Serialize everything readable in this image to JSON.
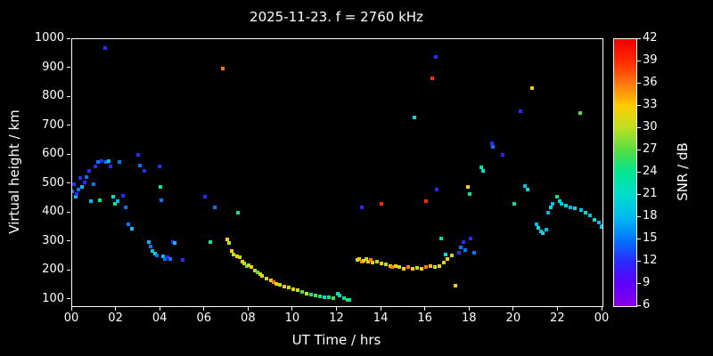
{
  "title": "2025-11-23. f = 2760 kHz",
  "colors": {
    "background": "#000000",
    "foreground": "#ffffff"
  },
  "axes": {
    "x_label": "UT Time / hrs",
    "y_label": "Virtual height / km",
    "x_tick_labels": [
      "00",
      "02",
      "04",
      "06",
      "08",
      "10",
      "12",
      "14",
      "16",
      "18",
      "20",
      "22",
      "00"
    ],
    "x_tick_values": [
      0,
      2,
      4,
      6,
      8,
      10,
      12,
      14,
      16,
      18,
      20,
      22,
      24
    ],
    "y_tick_values": [
      100,
      200,
      300,
      400,
      500,
      600,
      700,
      800,
      900,
      1000
    ]
  },
  "colorbar": {
    "label": "SNR / dB",
    "ticks": [
      6,
      9,
      12,
      15,
      18,
      21,
      24,
      27,
      30,
      33,
      36,
      39,
      42
    ],
    "range": [
      6,
      42
    ],
    "stops": [
      {
        "value": 6,
        "color": "#8800e8"
      },
      {
        "value": 9,
        "color": "#5f00ff"
      },
      {
        "value": 12,
        "color": "#2a2aff"
      },
      {
        "value": 15,
        "color": "#0077ff"
      },
      {
        "value": 18,
        "color": "#00bbee"
      },
      {
        "value": 21,
        "color": "#00ddcc"
      },
      {
        "value": 24,
        "color": "#00e691"
      },
      {
        "value": 27,
        "color": "#55dd44"
      },
      {
        "value": 30,
        "color": "#bbe022"
      },
      {
        "value": 33,
        "color": "#ffcc00"
      },
      {
        "value": 36,
        "color": "#ff7711"
      },
      {
        "value": 39,
        "color": "#ff2a00"
      },
      {
        "value": 42,
        "color": "#ee0000"
      }
    ]
  },
  "chart_data": {
    "type": "scatter",
    "title": "2025-11-23. f = 2760 kHz",
    "xlabel": "UT Time / hrs",
    "ylabel": "Virtual height / km",
    "colorbar_label": "SNR / dB",
    "xlim": [
      0,
      24
    ],
    "ylim": [
      78,
      1000
    ],
    "color_range": [
      6,
      42
    ],
    "marker": "square",
    "point_format": [
      "ut_hours",
      "virtual_height_km",
      "snr_db"
    ],
    "points": [
      [
        0.0,
        475,
        15
      ],
      [
        0.1,
        500,
        12
      ],
      [
        0.15,
        455,
        18
      ],
      [
        0.2,
        465,
        12
      ],
      [
        0.3,
        480,
        15
      ],
      [
        0.35,
        520,
        12
      ],
      [
        0.45,
        490,
        18
      ],
      [
        0.55,
        505,
        12
      ],
      [
        0.65,
        525,
        15
      ],
      [
        0.75,
        545,
        12
      ],
      [
        0.85,
        440,
        18
      ],
      [
        0.95,
        500,
        15
      ],
      [
        1.05,
        560,
        12
      ],
      [
        1.15,
        575,
        15
      ],
      [
        1.25,
        445,
        24
      ],
      [
        1.35,
        580,
        12
      ],
      [
        1.5,
        970,
        12
      ],
      [
        1.55,
        575,
        15
      ],
      [
        1.65,
        580,
        18
      ],
      [
        1.75,
        560,
        12
      ],
      [
        1.85,
        455,
        21
      ],
      [
        1.95,
        430,
        24
      ],
      [
        2.05,
        440,
        18
      ],
      [
        2.15,
        575,
        15
      ],
      [
        2.3,
        460,
        12
      ],
      [
        2.4,
        420,
        15
      ],
      [
        2.55,
        360,
        15
      ],
      [
        2.7,
        345,
        18
      ],
      [
        3.0,
        600,
        12
      ],
      [
        3.05,
        565,
        15
      ],
      [
        3.25,
        545,
        12
      ],
      [
        3.45,
        300,
        18
      ],
      [
        3.55,
        285,
        15
      ],
      [
        3.65,
        270,
        18
      ],
      [
        3.75,
        258,
        21
      ],
      [
        3.85,
        252,
        15
      ],
      [
        3.95,
        560,
        12
      ],
      [
        4.0,
        490,
        24
      ],
      [
        4.05,
        445,
        15
      ],
      [
        4.1,
        250,
        18
      ],
      [
        4.2,
        242,
        15
      ],
      [
        4.3,
        246,
        12
      ],
      [
        4.45,
        240,
        15
      ],
      [
        4.55,
        300,
        12
      ],
      [
        4.65,
        295,
        18
      ],
      [
        5.0,
        238,
        12
      ],
      [
        6.0,
        455,
        12
      ],
      [
        6.25,
        300,
        24
      ],
      [
        6.45,
        420,
        15
      ],
      [
        6.8,
        900,
        36
      ],
      [
        7.0,
        310,
        33
      ],
      [
        7.1,
        295,
        30
      ],
      [
        7.2,
        268,
        33
      ],
      [
        7.3,
        256,
        30
      ],
      [
        7.45,
        250,
        33
      ],
      [
        7.5,
        400,
        24
      ],
      [
        7.6,
        246,
        30
      ],
      [
        7.7,
        232,
        33
      ],
      [
        7.8,
        226,
        30
      ],
      [
        7.9,
        216,
        27
      ],
      [
        8.0,
        220,
        30
      ],
      [
        8.1,
        212,
        33
      ],
      [
        8.25,
        202,
        30
      ],
      [
        8.4,
        196,
        27
      ],
      [
        8.5,
        188,
        30
      ],
      [
        8.6,
        182,
        33
      ],
      [
        8.8,
        172,
        30
      ],
      [
        9.0,
        166,
        33
      ],
      [
        9.1,
        160,
        36
      ],
      [
        9.25,
        156,
        33
      ],
      [
        9.4,
        152,
        30
      ],
      [
        9.6,
        146,
        33
      ],
      [
        9.8,
        142,
        30
      ],
      [
        10.0,
        136,
        33
      ],
      [
        10.2,
        132,
        30
      ],
      [
        10.4,
        126,
        27
      ],
      [
        10.6,
        122,
        30
      ],
      [
        10.8,
        118,
        24
      ],
      [
        11.0,
        116,
        27
      ],
      [
        11.2,
        112,
        24
      ],
      [
        11.4,
        110,
        21
      ],
      [
        11.6,
        108,
        24
      ],
      [
        11.8,
        106,
        27
      ],
      [
        12.0,
        122,
        24
      ],
      [
        12.1,
        116,
        21
      ],
      [
        12.3,
        106,
        24
      ],
      [
        12.45,
        100,
        27
      ],
      [
        12.55,
        98,
        24
      ],
      [
        12.9,
        238,
        30
      ],
      [
        13.0,
        242,
        33
      ],
      [
        13.1,
        232,
        36
      ],
      [
        13.2,
        236,
        33
      ],
      [
        13.3,
        242,
        30
      ],
      [
        13.4,
        232,
        33
      ],
      [
        13.5,
        238,
        36
      ],
      [
        13.6,
        228,
        33
      ],
      [
        13.8,
        232,
        30
      ],
      [
        14.0,
        226,
        33
      ],
      [
        14.2,
        222,
        30
      ],
      [
        14.4,
        216,
        33
      ],
      [
        14.5,
        212,
        36
      ],
      [
        14.65,
        216,
        33
      ],
      [
        14.8,
        212,
        30
      ],
      [
        15.0,
        206,
        33
      ],
      [
        15.2,
        212,
        36
      ],
      [
        15.4,
        206,
        33
      ],
      [
        15.6,
        210,
        30
      ],
      [
        15.8,
        206,
        33
      ],
      [
        16.0,
        212,
        36
      ],
      [
        16.2,
        216,
        33
      ],
      [
        16.4,
        212,
        30
      ],
      [
        16.6,
        216,
        33
      ],
      [
        16.8,
        230,
        30
      ],
      [
        17.0,
        242,
        33
      ],
      [
        17.2,
        252,
        30
      ],
      [
        13.1,
        420,
        12
      ],
      [
        14.0,
        430,
        39
      ],
      [
        15.5,
        730,
        21
      ],
      [
        16.0,
        440,
        39
      ],
      [
        16.3,
        865,
        39
      ],
      [
        16.45,
        940,
        12
      ],
      [
        16.5,
        480,
        12
      ],
      [
        16.7,
        312,
        24
      ],
      [
        16.9,
        255,
        21
      ],
      [
        17.35,
        150,
        33
      ],
      [
        17.5,
        262,
        12
      ],
      [
        17.6,
        282,
        15
      ],
      [
        17.7,
        300,
        12
      ],
      [
        17.8,
        272,
        15
      ],
      [
        17.9,
        490,
        33
      ],
      [
        18.0,
        465,
        24
      ],
      [
        18.05,
        312,
        12
      ],
      [
        18.2,
        262,
        15
      ],
      [
        18.5,
        556,
        24
      ],
      [
        18.6,
        545,
        21
      ],
      [
        19.0,
        640,
        12
      ],
      [
        19.05,
        628,
        15
      ],
      [
        19.5,
        600,
        12
      ],
      [
        20.0,
        432,
        24
      ],
      [
        20.3,
        752,
        12
      ],
      [
        20.5,
        492,
        18
      ],
      [
        20.6,
        482,
        21
      ],
      [
        20.8,
        830,
        33
      ],
      [
        21.0,
        362,
        18
      ],
      [
        21.1,
        348,
        21
      ],
      [
        21.2,
        336,
        18
      ],
      [
        21.3,
        330,
        21
      ],
      [
        21.45,
        342,
        18
      ],
      [
        21.55,
        400,
        18
      ],
      [
        21.65,
        420,
        21
      ],
      [
        21.75,
        432,
        18
      ],
      [
        21.95,
        455,
        24
      ],
      [
        22.05,
        442,
        21
      ],
      [
        22.15,
        432,
        18
      ],
      [
        22.35,
        426,
        21
      ],
      [
        22.55,
        420,
        18
      ],
      [
        22.75,
        416,
        21
      ],
      [
        23.0,
        745,
        27
      ],
      [
        23.05,
        410,
        18
      ],
      [
        23.25,
        400,
        21
      ],
      [
        23.45,
        390,
        18
      ],
      [
        23.65,
        376,
        21
      ],
      [
        23.85,
        366,
        18
      ],
      [
        23.95,
        352,
        21
      ],
      [
        24.0,
        356,
        18
      ]
    ]
  }
}
